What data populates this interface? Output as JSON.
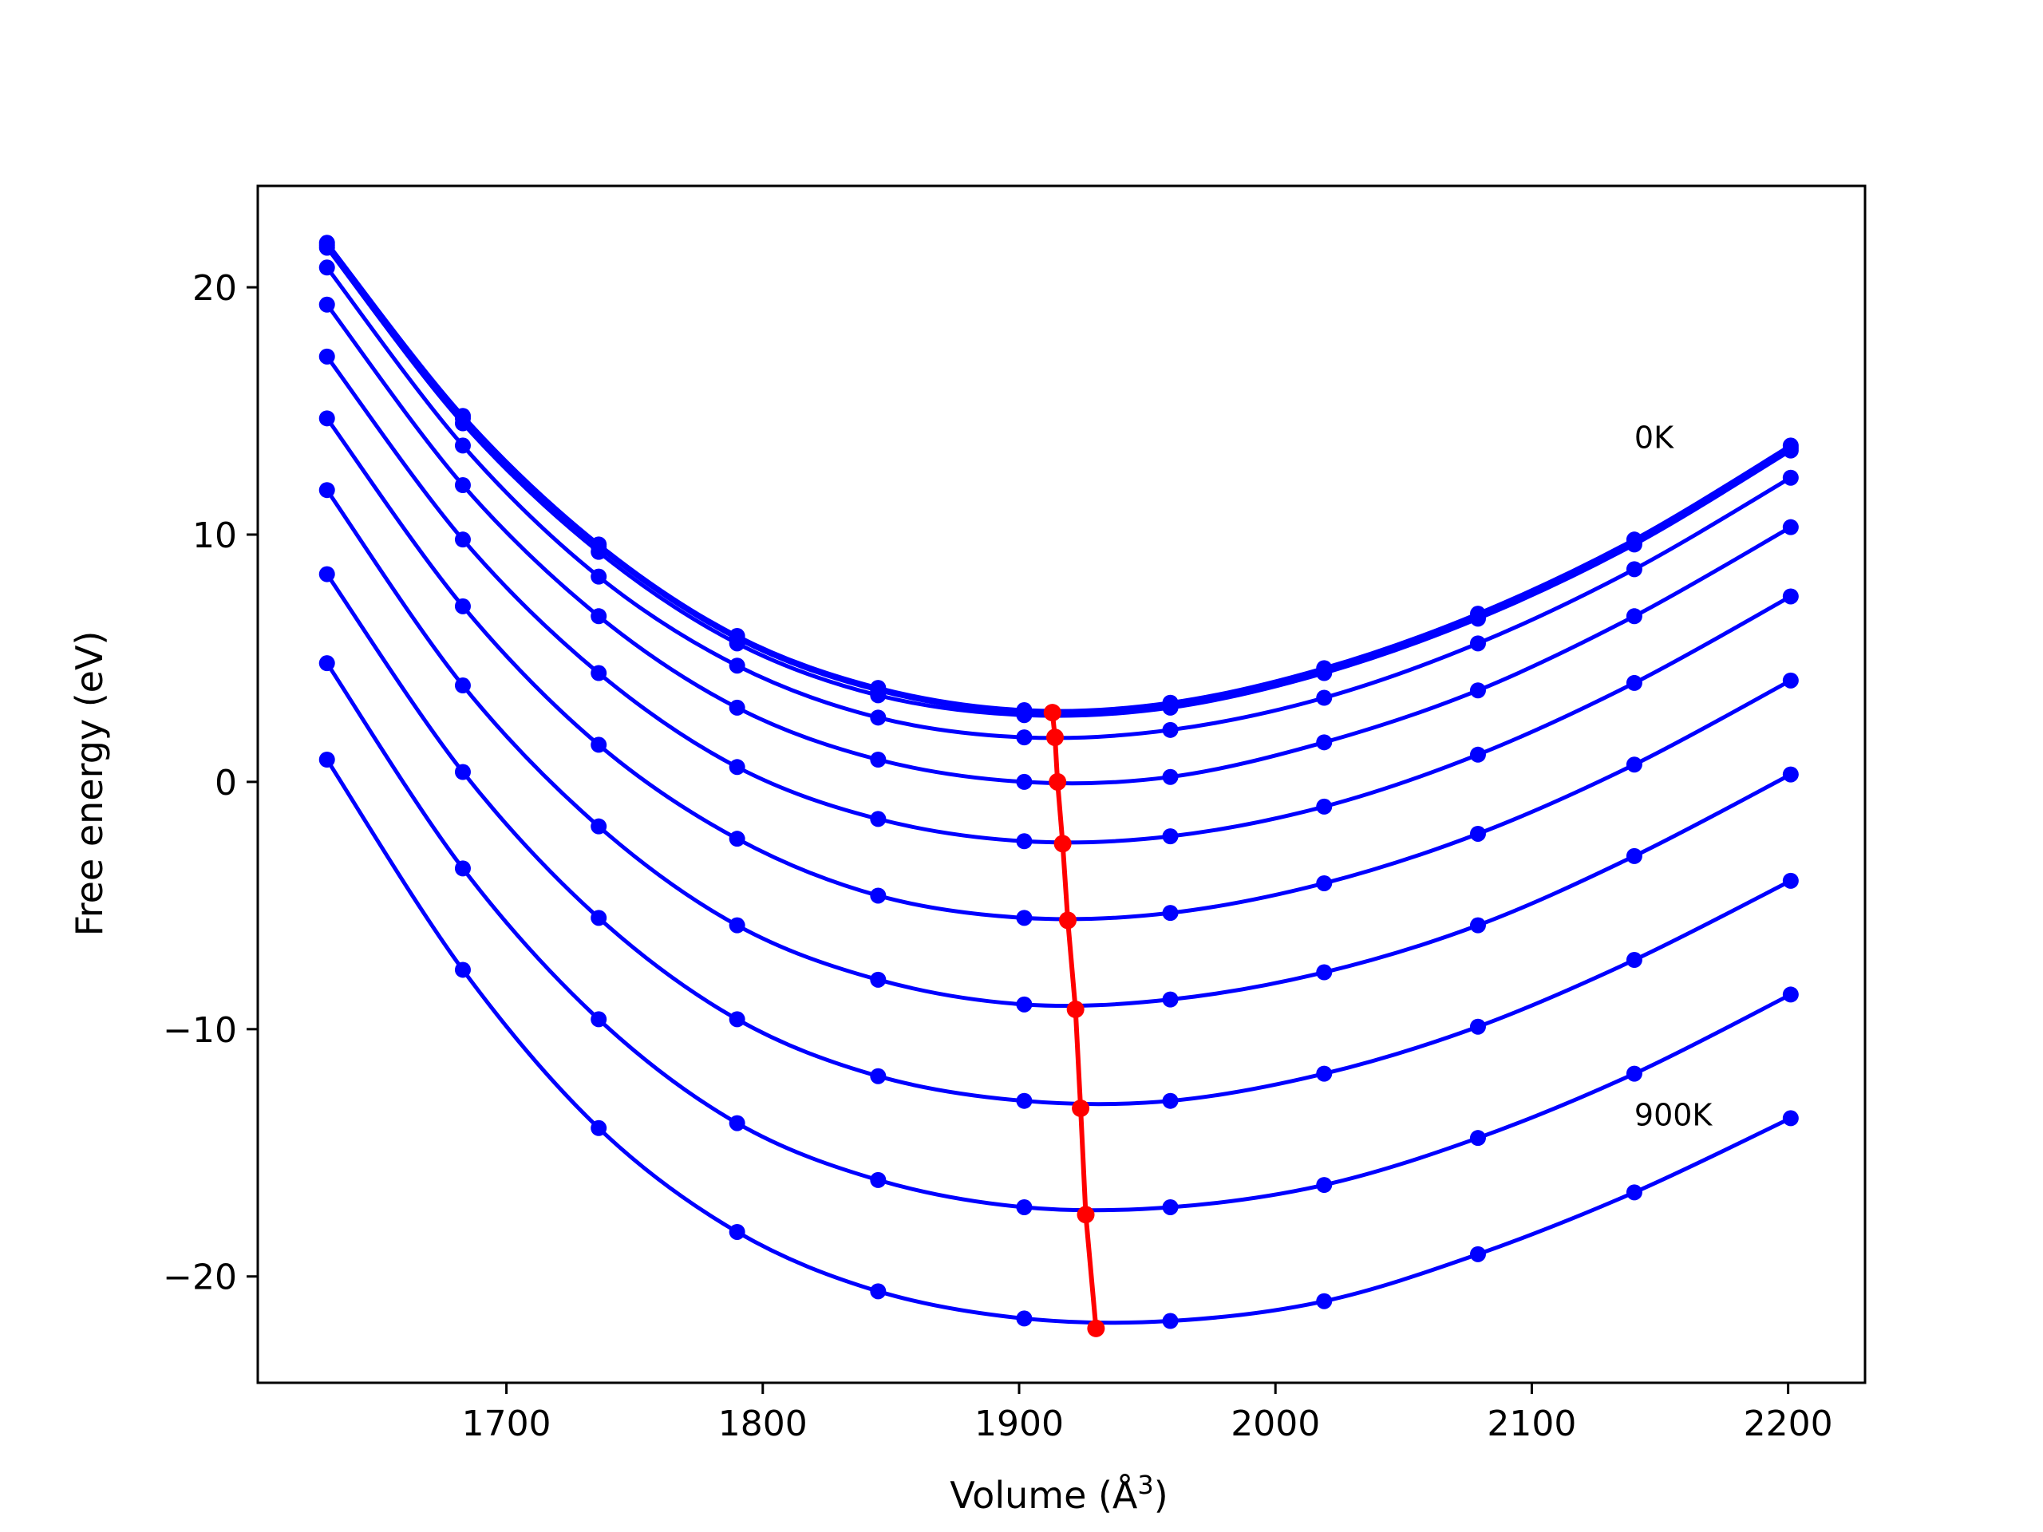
{
  "chart_data": {
    "type": "line",
    "xlabel": "Volume (Å",
    "xlabel_sup": "3",
    "xlabel_end": ")",
    "ylabel": "Free energy (eV)",
    "xlim": [
      1603,
      2230
    ],
    "ylim": [
      -24.3,
      24.1
    ],
    "xticks": [
      1700,
      1800,
      1900,
      2000,
      2100,
      2200
    ],
    "yticks": [
      -20,
      -10,
      0,
      10,
      20
    ],
    "ytick_labels": [
      "−20",
      "−10",
      "0",
      "10",
      "20"
    ],
    "grid": false,
    "colors": {
      "series": "#0000ff",
      "minimum_line": "#ff0000",
      "axes": "#000000"
    },
    "annotations": [
      {
        "text": "0K",
        "x": 2140,
        "y": 13.5
      },
      {
        "text": "900K",
        "x": 2140,
        "y": -13.9
      }
    ],
    "x": [
      1630,
      1683,
      1736,
      1790,
      1845,
      1902,
      1959,
      2019,
      2079,
      2140,
      2201
    ],
    "series": [
      {
        "values": [
          21.8,
          14.8,
          9.6,
          5.9,
          3.8,
          2.9,
          3.2,
          4.6,
          6.8,
          9.8,
          13.6
        ]
      },
      {
        "values": [
          21.7,
          14.7,
          9.5,
          5.8,
          3.7,
          2.8,
          3.1,
          4.5,
          6.7,
          9.7,
          13.5
        ]
      },
      {
        "values": [
          21.6,
          14.5,
          9.3,
          5.6,
          3.5,
          2.7,
          3.0,
          4.4,
          6.6,
          9.6,
          13.4
        ]
      },
      {
        "values": [
          20.8,
          13.6,
          8.3,
          4.7,
          2.6,
          1.8,
          2.1,
          3.4,
          5.6,
          8.6,
          12.3
        ]
      },
      {
        "values": [
          19.3,
          12.0,
          6.7,
          3.0,
          0.9,
          0.0,
          0.2,
          1.6,
          3.7,
          6.7,
          10.3
        ]
      },
      {
        "values": [
          17.2,
          9.8,
          4.4,
          0.6,
          -1.5,
          -2.4,
          -2.2,
          -1.0,
          1.1,
          4.0,
          7.5
        ]
      },
      {
        "values": [
          14.7,
          7.1,
          1.5,
          -2.3,
          -4.6,
          -5.5,
          -5.3,
          -4.1,
          -2.1,
          0.7,
          4.1
        ]
      },
      {
        "values": [
          11.8,
          3.9,
          -1.8,
          -5.8,
          -8.0,
          -9.0,
          -8.8,
          -7.7,
          -5.8,
          -3.0,
          0.3
        ]
      },
      {
        "values": [
          8.4,
          0.4,
          -5.5,
          -9.6,
          -11.9,
          -12.9,
          -12.9,
          -11.8,
          -9.9,
          -7.2,
          -4.0
        ]
      },
      {
        "values": [
          4.8,
          -3.5,
          -9.6,
          -13.8,
          -16.1,
          -17.2,
          -17.2,
          -16.3,
          -14.4,
          -11.8,
          -8.6
        ]
      },
      {
        "values": [
          0.9,
          -7.6,
          -14.0,
          -18.2,
          -20.6,
          -21.7,
          -21.8,
          -21.0,
          -19.1,
          -16.6,
          -13.6
        ]
      }
    ],
    "minimum_line": {
      "x": [
        1913,
        1914,
        1915,
        1917,
        1919,
        1922,
        1924,
        1926,
        1930
      ],
      "y": [
        2.8,
        1.8,
        0.0,
        -2.5,
        -5.6,
        -9.2,
        -13.2,
        -17.5,
        -22.1
      ]
    }
  }
}
